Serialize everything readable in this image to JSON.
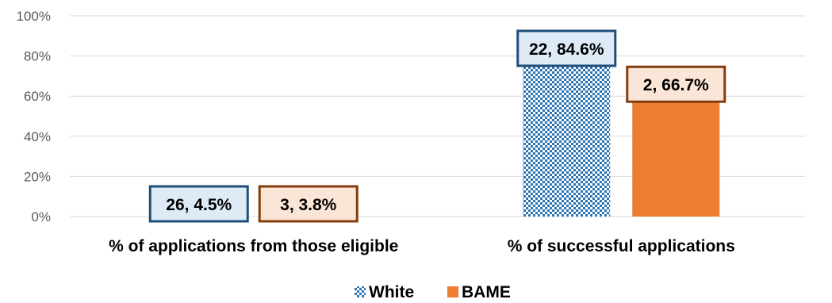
{
  "chart_data": {
    "type": "bar",
    "categories": [
      "%  of applications from those eligible",
      "% of successful applications"
    ],
    "series": [
      {
        "name": "White",
        "values": [
          4.5,
          84.6
        ],
        "labels": [
          "26, 4.5%",
          "22, 84.6%"
        ],
        "pattern": "checkered",
        "color": "#2E75B6",
        "label_fill": "#DEEBF7",
        "label_border": "#1F4E79"
      },
      {
        "name": "BAME",
        "values": [
          3.8,
          66.7
        ],
        "labels": [
          "3, 3.8%",
          "2, 66.7%"
        ],
        "color": "#ED7D31",
        "label_fill": "#FBE5D6",
        "label_border": "#843C0C"
      }
    ],
    "yticks": [
      "0%",
      "20%",
      "40%",
      "60%",
      "80%",
      "100%"
    ],
    "ylim": [
      0,
      100
    ],
    "grid": true,
    "legend": "bottom-center",
    "title": "",
    "xlabel": "",
    "ylabel": ""
  }
}
